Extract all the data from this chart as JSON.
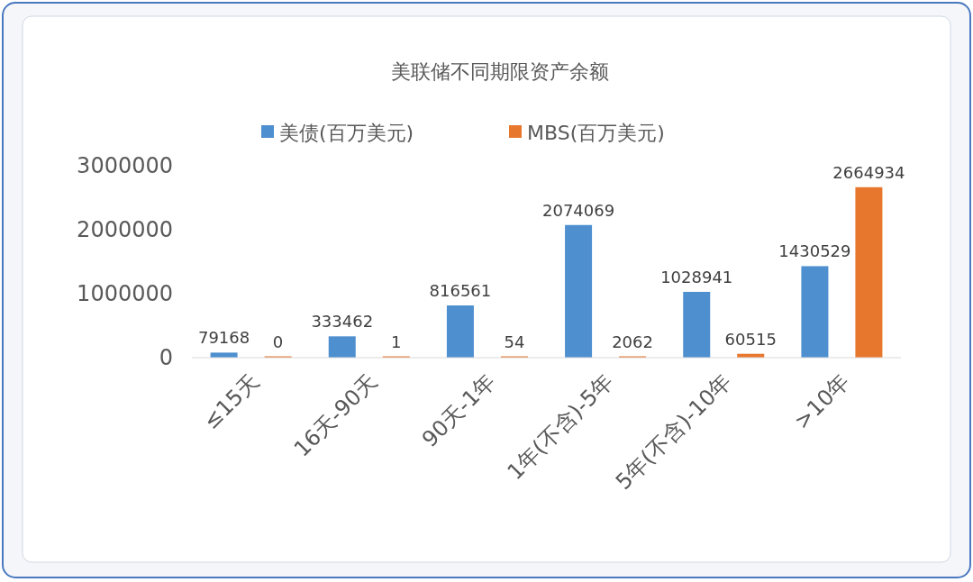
{
  "chart_data": {
    "type": "bar",
    "title": "美联储不同期限资产余额",
    "categories": [
      "≤15天",
      "16天-90天",
      "90天-1年",
      "1年(不含)-5年",
      "5年(不含)-10年",
      ">10年"
    ],
    "series": [
      {
        "name": "美债(百万美元)",
        "color": "#4e8fcf",
        "values": [
          79168,
          333462,
          816561,
          2074069,
          1028941,
          1430529
        ]
      },
      {
        "name": "MBS(百万美元)",
        "color": "#e8772e",
        "values": [
          0,
          1,
          54,
          2062,
          60515,
          2664934
        ]
      }
    ],
    "ylim": [
      0,
      3000000
    ],
    "yticks": [
      0,
      1000000,
      2000000,
      3000000
    ],
    "legend": "top",
    "data_labels": true
  }
}
